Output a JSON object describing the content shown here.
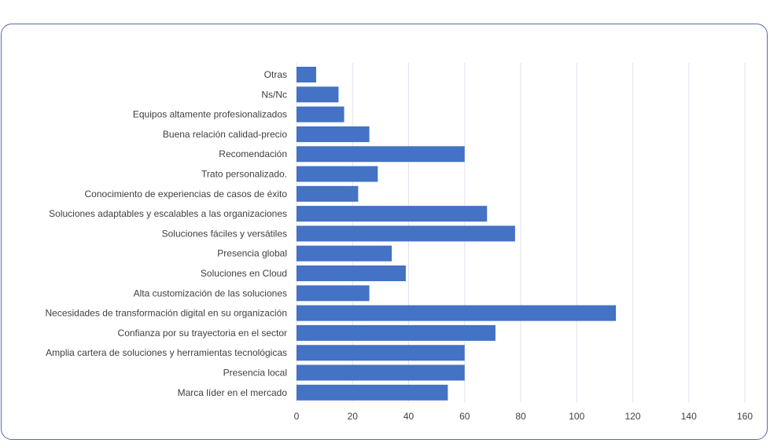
{
  "chart_data": {
    "type": "bar",
    "orientation": "horizontal",
    "title": "",
    "xlabel": "",
    "ylabel": "",
    "xlim": [
      0,
      160
    ],
    "xticks": [
      0,
      20,
      40,
      60,
      80,
      100,
      120,
      140,
      160
    ],
    "grid": true,
    "colors": {
      "bar": "#4472c4",
      "grid": "#dfe3ee",
      "frame": "#5a6aa8"
    },
    "categories": [
      "Otras",
      "Ns/Nc",
      "Equipos altamente profesionalizados",
      "Buena relación calidad-precio",
      "Recomendación",
      "Trato personalizado.",
      "Conocimiento de experiencias de casos de éxito",
      "Soluciones adaptables y escalables a las organizaciones",
      "Soluciones fáciles y versátiles",
      "Presencia global",
      "Soluciones en Cloud",
      "Alta customización de las soluciones",
      "Necesidades de transformación digital en su organización",
      "Confianza por su trayectoria en el sector",
      "Amplia cartera de soluciones y herramientas tecnológicas",
      "Presencia local",
      "Marca líder en el mercado"
    ],
    "values": [
      7,
      15,
      17,
      26,
      60,
      29,
      22,
      68,
      78,
      34,
      39,
      26,
      114,
      71,
      60,
      60,
      54
    ]
  }
}
